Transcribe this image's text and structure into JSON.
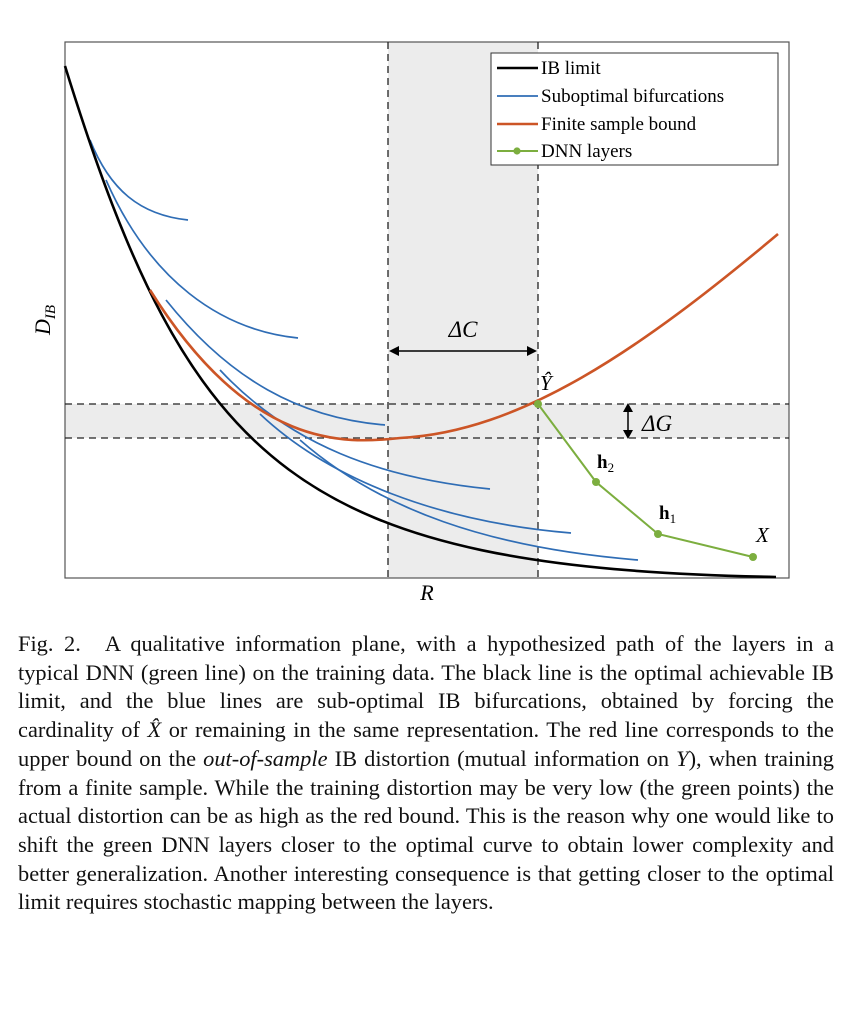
{
  "figure": {
    "ylabel": "D",
    "ylabel_sub": "IB",
    "xlabel": "R",
    "annotations": {
      "delta_c": "ΔC",
      "delta_g": "ΔG",
      "y_hat": "Ŷ",
      "h2": "h",
      "h2_sub": "2",
      "h1": "h",
      "h1_sub": "1",
      "x": "X"
    },
    "legend": {
      "ib_limit": "IB limit",
      "suboptimal": "Suboptimal bifurcations",
      "finite_sample": "Finite sample bound",
      "dnn_layers": "DNN layers"
    },
    "colors": {
      "ib_limit": "#000000",
      "suboptimal": "#2f6db5",
      "finite_sample": "#cc5526",
      "dnn_layers": "#7cae3f",
      "band": "#ececec"
    }
  },
  "caption": {
    "label": "Fig. 2.",
    "part1": "A qualitative information plane, with a hypothesized path of the layers in a typical DNN (green line) on the training data. The black line is the optimal achievable IB limit, and the blue lines are sub-optimal IB bifurcations, obtained by forcing the cardinality of ",
    "xhat": "X̂",
    "part2": " or remaining in the same representation. The red line corresponds to the upper bound on the ",
    "italic": "out-of-sample",
    "part3": " IB distortion (mutual information on ",
    "y": "Y",
    "part4": "), when training from a finite sample. While the training distortion may be very low (the green points) the actual distortion can be as high as the red bound. This is the reason why one would like to shift the green DNN layers closer to the optimal curve to obtain lower complexity and better generalization. Another interesting consequence is that getting closer to the optimal limit requires stochastic mapping between the layers."
  }
}
